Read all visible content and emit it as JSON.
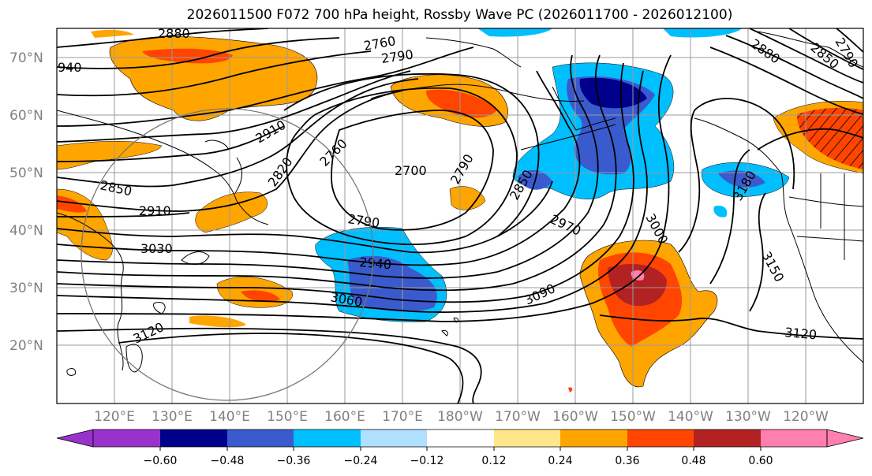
{
  "title": "2026011500 F072 700 hPa height, Rossby Wave PC (2026011700 - 2026012100)",
  "lat_labels": [
    "70°N",
    "60°N",
    "50°N",
    "40°N",
    "30°N",
    "20°N"
  ],
  "lon_labels": [
    "120°E",
    "130°E",
    "140°E",
    "150°E",
    "160°E",
    "170°E",
    "180°W",
    "170°W",
    "160°W",
    "150°W",
    "140°W",
    "130°W",
    "120°W"
  ],
  "contour_labels": [
    "2880",
    "2760",
    "2790",
    "940",
    "2910",
    "2760",
    "2820",
    "2700",
    "2790",
    "2850",
    "2850",
    "2910",
    "2790",
    "3030",
    "2940",
    "2970",
    "3000",
    "3060",
    "3090",
    "3120",
    "3150",
    "3180",
    "3120",
    "2880",
    "2850",
    "2790"
  ],
  "colorbar": {
    "colors": [
      "#9932cc",
      "#00008b",
      "#3a5bcd",
      "#00bfff",
      "#b0e0ff",
      "#ffffff",
      "#ffe68a",
      "#ffa500",
      "#ff4500",
      "#b22222",
      "#ff7faf"
    ],
    "tick_labels": [
      "−0.60",
      "−0.48",
      "−0.36",
      "−0.24",
      "−0.12",
      "0.12",
      "0.24",
      "0.36",
      "0.48",
      "0.60"
    ]
  }
}
